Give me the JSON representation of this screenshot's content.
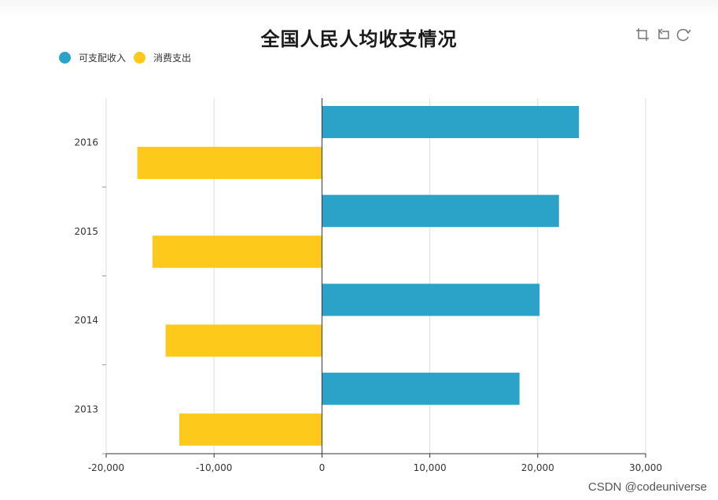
{
  "title": "全国人民人均收支情况",
  "watermark": "CSDN @codeuniverse",
  "toolbox": [
    {
      "icon": "zoom-area-icon"
    },
    {
      "icon": "zoom-reset-icon"
    },
    {
      "icon": "restore-icon"
    }
  ],
  "legend": [
    {
      "name": "可支配收入",
      "color": "#2ba3c8"
    },
    {
      "name": "消费支出",
      "color": "#fdc91a"
    }
  ],
  "chart_data": {
    "type": "bar",
    "orientation": "horizontal",
    "title": "全国人民人均收支情况",
    "categories": [
      "2013",
      "2014",
      "2015",
      "2016"
    ],
    "series": [
      {
        "name": "可支配收入",
        "color": "#2ba3c8",
        "values": [
          18311,
          20167,
          21966,
          23821
        ]
      },
      {
        "name": "消费支出",
        "color": "#fdc91a",
        "values": [
          -13220,
          -14491,
          -15712,
          -17111
        ]
      }
    ],
    "xlim": [
      -20000,
      30000
    ],
    "xticks": [
      -20000,
      -10000,
      0,
      10000,
      20000,
      30000
    ],
    "xtick_labels": [
      "-20,000",
      "-10,000",
      "0",
      "10,000",
      "20,000",
      "30,000"
    ],
    "xlabel": "",
    "ylabel": "",
    "grid": true,
    "legend_position": "top-left"
  }
}
